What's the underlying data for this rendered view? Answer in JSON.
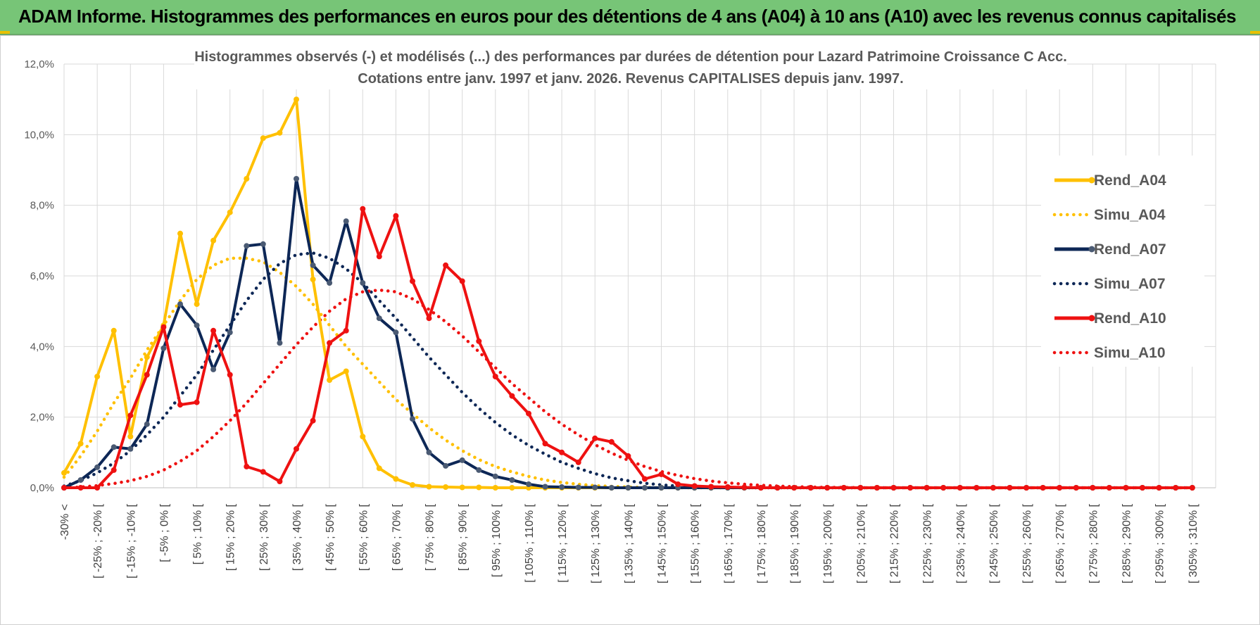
{
  "header": {
    "title": "ADAM Informe. Histogrammes des performances en euros pour des détentions de 4 ans (A04) à 10 ans (A10) avec les revenus connus capitalisés"
  },
  "colors": {
    "banner": "#77c577",
    "A04": "#FFC000",
    "A07": "#0D2756",
    "A07_marker": "#4A5A73",
    "A10": "#EE1111",
    "grid": "#D9D9D9"
  },
  "chart_data": {
    "type": "line",
    "title_lines": [
      "Histogrammes observés (-) et modélisés (...) des performances par durées de détention pour Lazard Patrimoine Croissance C Acc.",
      "Cotations entre janv. 1997 et janv. 2026. Revenus CAPITALISES depuis janv. 1997."
    ],
    "xlabel": "",
    "ylabel": "",
    "ylim": [
      0,
      12
    ],
    "y_ticks": [
      "0,0%",
      "2,0%",
      "4,0%",
      "6,0%",
      "8,0%",
      "10,0%",
      "12,0%"
    ],
    "grid": true,
    "legend_position": "right",
    "x_tick_labels": [
      "-30% <",
      "[ -25% ; -20% [",
      "[ -15% ; -10% [",
      "[ -5% ; 0% [",
      "[ 5% ; 10% [",
      "[ 15% ; 20% [",
      "[ 25% ; 30% [",
      "[ 35% ; 40% [",
      "[ 45% ; 50% [",
      "[ 55% ; 60% [",
      "[ 65% ; 70% [",
      "[ 75% ; 80% [",
      "[ 85% ; 90% [",
      "[ 95% ; 100% [",
      "[ 105% ; 110% [",
      "[ 115% ; 120% [",
      "[ 125% ; 130% [",
      "[ 135% ; 140% [",
      "[ 145% ; 150% [",
      "[ 155% ; 160% [",
      "[ 165% ; 170% [",
      "[ 175% ; 180% [",
      "[ 185% ; 190% [",
      "[ 195% ; 200% [",
      "[ 205% ; 210% [",
      "[ 215% ; 220% [",
      "[ 225% ; 230% [",
      "[ 235% ; 240% [",
      "[ 245% ; 250% [",
      "[ 255% ; 260% [",
      "[ 265% ; 270% [",
      "[ 275% ; 280% [",
      "[ 285% ; 290% [",
      "[ 295% ; 300% [",
      "[ 305% ; 310% ["
    ],
    "x_categories_count": 69,
    "series": [
      {
        "name": "Rend_A04",
        "style": "solid",
        "color": "#FFC000",
        "values": [
          0.42,
          1.25,
          3.15,
          4.45,
          1.45,
          3.7,
          4.6,
          7.2,
          5.2,
          7.0,
          7.8,
          8.75,
          9.9,
          10.05,
          11.0,
          5.9,
          3.05,
          3.3,
          1.45,
          0.55,
          0.25,
          0.08,
          0.03,
          0.02,
          0.01,
          0.01,
          0.0,
          0.0,
          0.0,
          0.0,
          0.0,
          0.0,
          0.0,
          0.0,
          0.0,
          0.0,
          0.0,
          0.0,
          0.0,
          0.0,
          0.0,
          0.0,
          0.0,
          0.0,
          0.0,
          0.0,
          0.0,
          0.0,
          0.0,
          0.0,
          0.0,
          0.0,
          0.0,
          0.0,
          0.0,
          0.0,
          0.0,
          0.0,
          0.0,
          0.0,
          0.0,
          0.0,
          0.0,
          0.0,
          0.0,
          0.0,
          0.0,
          0.0,
          0.0
        ]
      },
      {
        "name": "Simu_A04",
        "style": "dotted",
        "color": "#FFC000",
        "values": [
          0.3,
          0.9,
          1.6,
          2.4,
          3.1,
          3.9,
          4.6,
          5.3,
          5.9,
          6.3,
          6.5,
          6.5,
          6.4,
          6.1,
          5.7,
          5.2,
          4.6,
          4.0,
          3.5,
          3.0,
          2.5,
          2.1,
          1.7,
          1.35,
          1.05,
          0.8,
          0.6,
          0.45,
          0.32,
          0.22,
          0.15,
          0.1,
          0.06,
          0.04,
          0.02,
          0.01,
          0.0,
          0.0,
          0.0,
          0.0,
          0.0,
          0.0,
          0.0,
          0.0,
          0.0,
          0.0,
          0.0,
          0.0,
          0.0,
          0.0,
          0.0,
          0.0,
          0.0,
          0.0,
          0.0,
          0.0,
          0.0,
          0.0,
          0.0,
          0.0,
          0.0,
          0.0,
          0.0,
          0.0,
          0.0,
          0.0,
          0.0,
          0.0,
          0.0
        ]
      },
      {
        "name": "Rend_A07",
        "style": "solid",
        "color": "#0D2756",
        "values": [
          0.0,
          0.22,
          0.58,
          1.15,
          1.1,
          1.8,
          3.95,
          5.2,
          4.6,
          3.35,
          4.4,
          6.85,
          6.9,
          4.1,
          8.75,
          6.3,
          5.8,
          7.55,
          5.8,
          4.8,
          4.4,
          1.95,
          1.0,
          0.62,
          0.78,
          0.5,
          0.32,
          0.22,
          0.1,
          0.03,
          0.02,
          0.01,
          0.01,
          0.0,
          0.0,
          0.0,
          0.0,
          0.0,
          0.0,
          0.0,
          0.0,
          0.0,
          0.0,
          0.0,
          0.0,
          0.0,
          0.0,
          0.0,
          0.0,
          0.0,
          0.0,
          0.0,
          0.0,
          0.0,
          0.0,
          0.0,
          0.0,
          0.0,
          0.0,
          0.0,
          0.0,
          0.0,
          0.0,
          0.0,
          0.0,
          0.0,
          0.0,
          0.0,
          0.0
        ]
      },
      {
        "name": "Simu_A07",
        "style": "dotted",
        "color": "#0D2756",
        "values": [
          0.05,
          0.2,
          0.42,
          0.7,
          1.05,
          1.5,
          2.0,
          2.6,
          3.2,
          3.9,
          4.6,
          5.3,
          5.9,
          6.35,
          6.6,
          6.65,
          6.5,
          6.2,
          5.8,
          5.3,
          4.8,
          4.25,
          3.7,
          3.2,
          2.7,
          2.25,
          1.85,
          1.5,
          1.2,
          0.95,
          0.72,
          0.55,
          0.4,
          0.28,
          0.2,
          0.13,
          0.08,
          0.05,
          0.03,
          0.02,
          0.01,
          0.0,
          0.0,
          0.0,
          0.0,
          0.0,
          0.0,
          0.0,
          0.0,
          0.0,
          0.0,
          0.0,
          0.0,
          0.0,
          0.0,
          0.0,
          0.0,
          0.0,
          0.0,
          0.0,
          0.0,
          0.0,
          0.0,
          0.0,
          0.0,
          0.0,
          0.0,
          0.0,
          0.0
        ]
      },
      {
        "name": "Rend_A10",
        "style": "solid",
        "color": "#EE1111",
        "values": [
          0.0,
          0.0,
          0.0,
          0.5,
          2.05,
          3.2,
          4.55,
          2.35,
          2.42,
          4.45,
          3.2,
          0.6,
          0.45,
          0.18,
          1.1,
          1.9,
          4.1,
          4.45,
          7.9,
          6.55,
          7.7,
          5.85,
          4.8,
          6.3,
          5.85,
          4.15,
          3.15,
          2.6,
          2.1,
          1.25,
          1.0,
          0.72,
          1.4,
          1.3,
          0.9,
          0.25,
          0.38,
          0.1,
          0.05,
          0.03,
          0.02,
          0.01,
          0.0,
          0.0,
          0.0,
          0.0,
          0.0,
          0.0,
          0.0,
          0.0,
          0.0,
          0.0,
          0.0,
          0.0,
          0.0,
          0.0,
          0.0,
          0.0,
          0.0,
          0.0,
          0.0,
          0.0,
          0.0,
          0.0,
          0.0,
          0.0,
          0.0,
          0.0,
          0.0
        ]
      },
      {
        "name": "Simu_A10",
        "style": "dotted",
        "color": "#EE1111",
        "values": [
          0.0,
          0.02,
          0.06,
          0.12,
          0.2,
          0.32,
          0.5,
          0.75,
          1.05,
          1.45,
          1.9,
          2.4,
          2.95,
          3.5,
          4.05,
          4.55,
          5.0,
          5.35,
          5.55,
          5.6,
          5.55,
          5.35,
          5.05,
          4.7,
          4.3,
          3.85,
          3.4,
          2.95,
          2.55,
          2.15,
          1.8,
          1.5,
          1.22,
          0.98,
          0.78,
          0.6,
          0.46,
          0.35,
          0.26,
          0.19,
          0.14,
          0.1,
          0.07,
          0.05,
          0.03,
          0.02,
          0.01,
          0.01,
          0.0,
          0.0,
          0.0,
          0.0,
          0.0,
          0.0,
          0.0,
          0.0,
          0.0,
          0.0,
          0.0,
          0.0,
          0.0,
          0.0,
          0.0,
          0.0,
          0.0,
          0.0,
          0.0,
          0.0,
          0.0
        ]
      }
    ]
  }
}
